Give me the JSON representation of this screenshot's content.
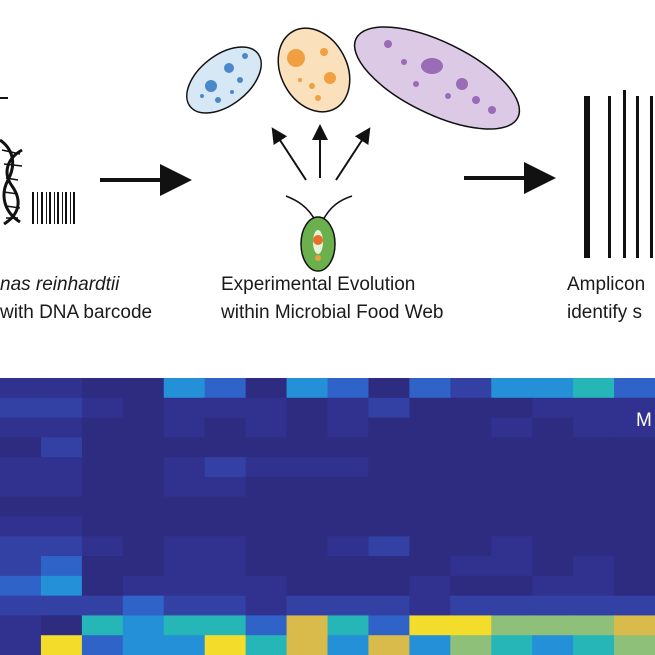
{
  "labels": {
    "left_line1": "nas reinhardtii",
    "left_line2": "with DNA barcode",
    "middle_line1": "Experimental Evolution",
    "middle_line2": "within Microbial Food Web",
    "right_line1": "Amplicon",
    "right_line2": "identify s",
    "heatmap_corner": "M"
  },
  "heatmap": {
    "palette": [
      "#2e2c80",
      "#31318f",
      "#3341a4",
      "#2f63c8",
      "#2390d8",
      "#26b6b8",
      "#8ec07a",
      "#d8bb4a",
      "#f4dd2a"
    ],
    "rows": [
      [
        1,
        1,
        0,
        0,
        4,
        3,
        0,
        4,
        3,
        0,
        3,
        2,
        4,
        4,
        5,
        3
      ],
      [
        2,
        2,
        1,
        0,
        1,
        1,
        1,
        0,
        1,
        2,
        0,
        0,
        0,
        1,
        1,
        1
      ],
      [
        1,
        1,
        0,
        0,
        1,
        0,
        1,
        0,
        1,
        0,
        0,
        0,
        1,
        0,
        1,
        1
      ],
      [
        0,
        2,
        0,
        0,
        0,
        0,
        0,
        0,
        0,
        0,
        0,
        0,
        0,
        0,
        0,
        0
      ],
      [
        1,
        1,
        0,
        0,
        1,
        2,
        1,
        1,
        1,
        0,
        0,
        0,
        0,
        0,
        0,
        0
      ],
      [
        1,
        1,
        0,
        0,
        1,
        1,
        0,
        0,
        0,
        0,
        0,
        0,
        0,
        0,
        0,
        0
      ],
      [
        0,
        0,
        0,
        0,
        0,
        0,
        0,
        0,
        0,
        0,
        0,
        0,
        0,
        0,
        0,
        0
      ],
      [
        1,
        1,
        0,
        0,
        0,
        0,
        0,
        0,
        0,
        0,
        0,
        0,
        0,
        0,
        0,
        0
      ],
      [
        2,
        2,
        1,
        0,
        1,
        1,
        0,
        0,
        1,
        2,
        0,
        0,
        1,
        0,
        0,
        0
      ],
      [
        2,
        3,
        0,
        0,
        1,
        1,
        0,
        0,
        0,
        0,
        0,
        1,
        1,
        0,
        1,
        0
      ],
      [
        3,
        4,
        0,
        1,
        1,
        1,
        1,
        0,
        0,
        0,
        1,
        0,
        0,
        1,
        1,
        0
      ],
      [
        2,
        2,
        2,
        3,
        2,
        2,
        1,
        2,
        2,
        2,
        1,
        2,
        2,
        2,
        2,
        2
      ],
      [
        1,
        0,
        5,
        4,
        5,
        5,
        3,
        7,
        5,
        3,
        8,
        8,
        6,
        6,
        6,
        7
      ],
      [
        1,
        8,
        3,
        4,
        4,
        8,
        5,
        7,
        4,
        7,
        4,
        6,
        5,
        4,
        5,
        6
      ]
    ]
  }
}
